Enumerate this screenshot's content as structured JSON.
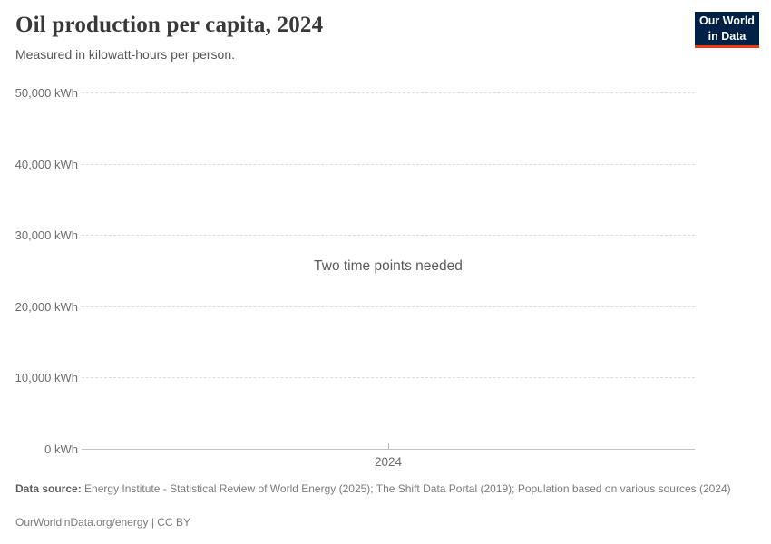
{
  "header": {
    "title": "Oil production per capita, 2024",
    "subtitle": "Measured in kilowatt-hours per person.",
    "logo": {
      "line1": "Our World",
      "line2": "in Data",
      "bg_color": "#002147",
      "accent_color": "#e63e13"
    }
  },
  "chart_data": {
    "type": "line",
    "title": "Oil production per capita, 2024",
    "ylabel": "kilowatt-hours per person",
    "message": "Two time points needed",
    "series": [],
    "x_ticks": [
      "2024"
    ],
    "y_ticks": [
      {
        "value": 0,
        "label": "0 kWh"
      },
      {
        "value": 10000,
        "label": "10,000 kWh"
      },
      {
        "value": 20000,
        "label": "20,000 kWh"
      },
      {
        "value": 30000,
        "label": "30,000 kWh"
      },
      {
        "value": 40000,
        "label": "40,000 kWh"
      },
      {
        "value": 50000,
        "label": "50,000 kWh"
      }
    ],
    "ylim": [
      0,
      50000
    ],
    "grid": "horizontal-dashed",
    "legend": "none"
  },
  "footer": {
    "source_label": "Data source:",
    "source_text": "Energy Institute - Statistical Review of World Energy (2025); The Shift Data Portal (2019); Population based on various sources (2024)",
    "license": "OurWorldinData.org/energy | CC BY"
  }
}
